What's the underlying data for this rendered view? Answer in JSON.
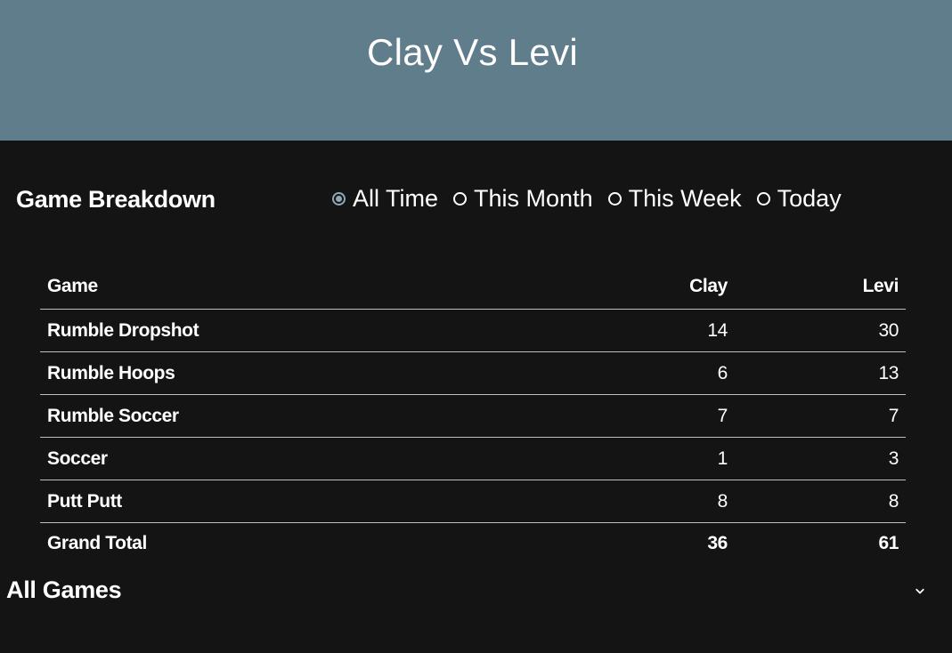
{
  "header": {
    "title": "Clay Vs Levi"
  },
  "breakdown": {
    "title": "Game Breakdown",
    "filters": [
      {
        "label": "All Time",
        "checked": true
      },
      {
        "label": "This Month",
        "checked": false
      },
      {
        "label": "This Week",
        "checked": false
      },
      {
        "label": "Today",
        "checked": false
      }
    ]
  },
  "table": {
    "headers": [
      "Game",
      "Clay",
      "Levi"
    ],
    "rows": [
      {
        "game": "Rumble Dropshot",
        "clay": "14",
        "levi": "30"
      },
      {
        "game": "Rumble Hoops",
        "clay": "6",
        "levi": "13"
      },
      {
        "game": "Rumble Soccer",
        "clay": "7",
        "levi": "7"
      },
      {
        "game": "Soccer",
        "clay": "1",
        "levi": "3"
      },
      {
        "game": "Putt Putt",
        "clay": "8",
        "levi": "8"
      }
    ],
    "total": {
      "game": "Grand Total",
      "clay": "36",
      "levi": "61"
    }
  },
  "all_games": {
    "title": "All Games",
    "icon": "chevron-down-icon"
  },
  "colors": {
    "header_bg": "#607d8b",
    "page_bg": "#141414",
    "radio_accent": "#8fa7b2"
  }
}
